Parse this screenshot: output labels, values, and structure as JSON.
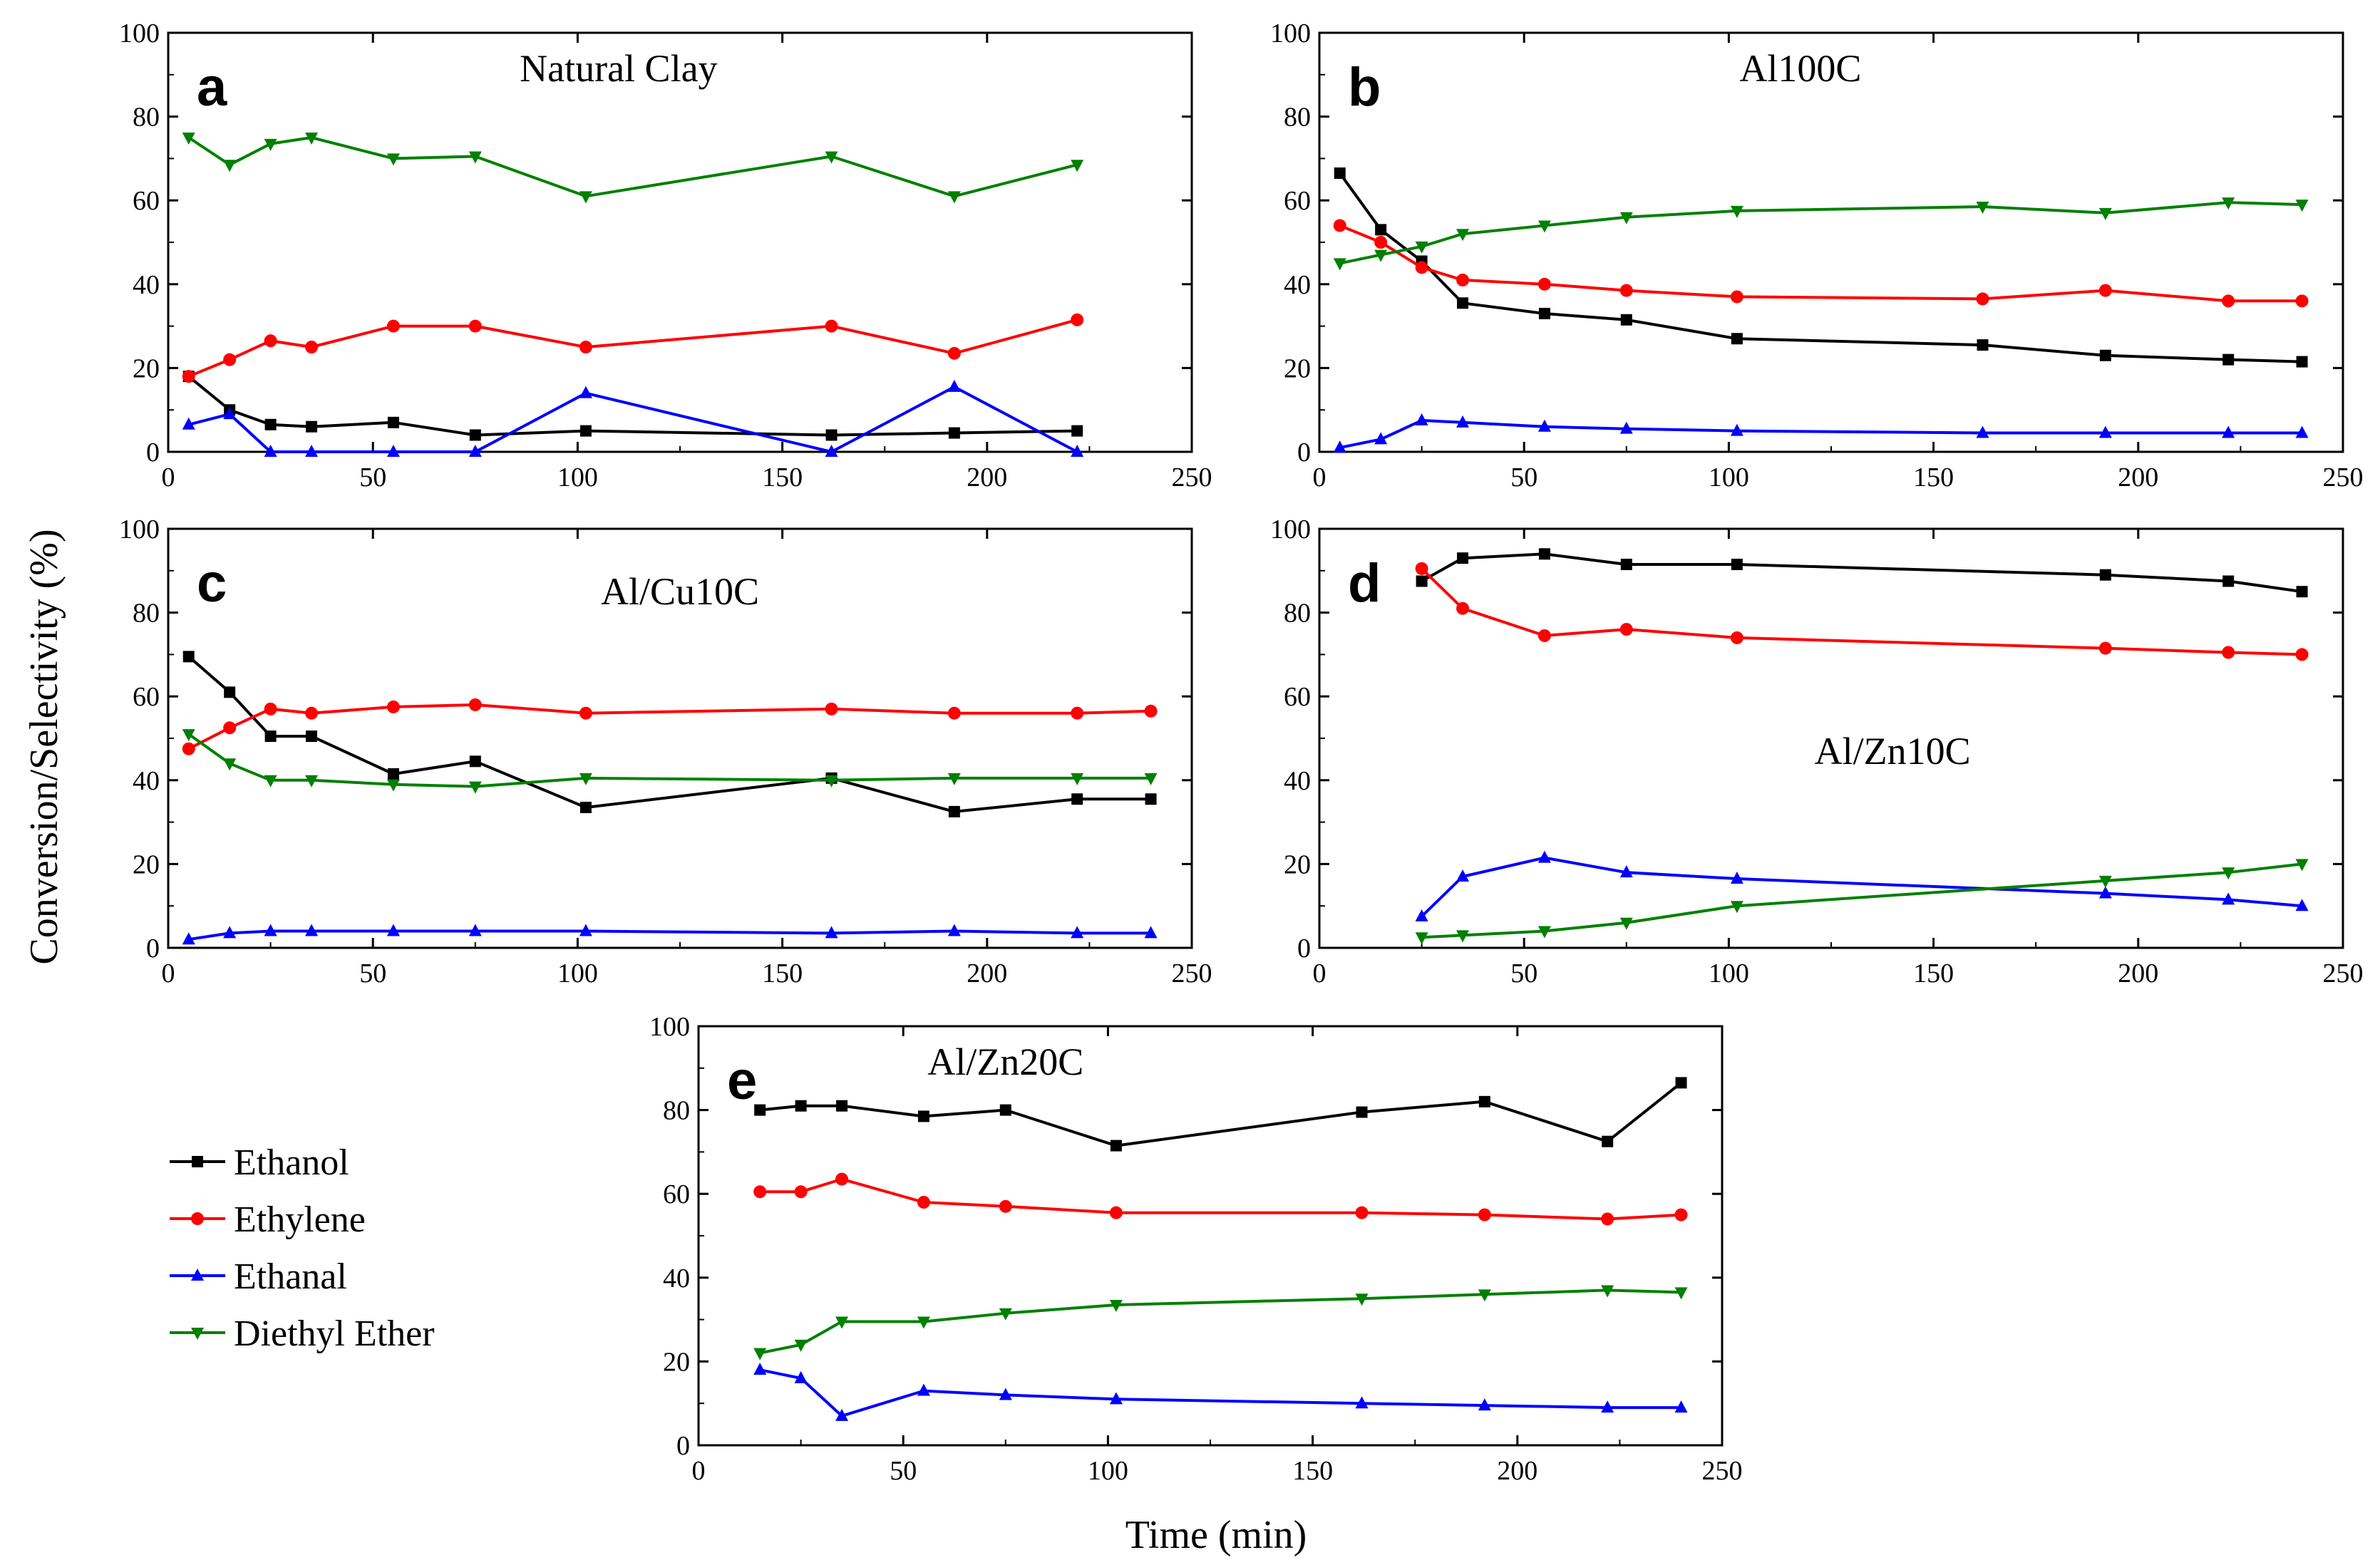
{
  "figure": {
    "ylabel": "Conversion/Selectivity (%)",
    "xlabel": "Time (min)"
  },
  "legend": {
    "entries": [
      {
        "label": "Ethanol",
        "color": "#000000",
        "marker": "square"
      },
      {
        "label": "Ethylene",
        "color": "#ff0000",
        "marker": "circle"
      },
      {
        "label": "Ethanal",
        "color": "#0000ff",
        "marker": "triangle-up"
      },
      {
        "label": "Diethyl Ether",
        "color": "#008000",
        "marker": "triangle-down"
      }
    ]
  },
  "chart_data": [
    {
      "type": "line",
      "letter": "a",
      "title": "Natural Clay",
      "xlim": [
        0,
        250
      ],
      "ylim": [
        0,
        100
      ],
      "xticks": [
        0,
        50,
        100,
        150,
        200,
        250
      ],
      "yticks": [
        0,
        20,
        40,
        60,
        80,
        100
      ],
      "series": [
        {
          "name": "Ethanol",
          "x": [
            5,
            15,
            25,
            35,
            55,
            75,
            102,
            162,
            192,
            222
          ],
          "y": [
            18,
            10,
            6.5,
            6,
            7,
            4,
            5,
            4,
            4.5,
            5
          ]
        },
        {
          "name": "Ethylene",
          "x": [
            5,
            15,
            25,
            35,
            55,
            75,
            102,
            162,
            192,
            222
          ],
          "y": [
            18,
            22,
            26.5,
            25,
            30,
            30,
            25,
            30,
            23.5,
            31.5
          ]
        },
        {
          "name": "Ethanal",
          "x": [
            5,
            15,
            25,
            35,
            55,
            75,
            102,
            162,
            192,
            222
          ],
          "y": [
            6.5,
            9,
            0,
            0,
            0,
            0,
            14,
            0,
            15.5,
            0
          ]
        },
        {
          "name": "Diethyl Ether",
          "x": [
            5,
            15,
            25,
            35,
            55,
            75,
            102,
            162,
            192,
            222
          ],
          "y": [
            75,
            68.5,
            73.5,
            75,
            70,
            70.5,
            61,
            70.5,
            61,
            68.5
          ]
        }
      ]
    },
    {
      "type": "line",
      "letter": "b",
      "title": "Al100C",
      "xlim": [
        0,
        250
      ],
      "ylim": [
        0,
        100
      ],
      "xticks": [
        0,
        50,
        100,
        150,
        200,
        250
      ],
      "yticks": [
        0,
        20,
        40,
        60,
        80,
        100
      ],
      "series": [
        {
          "name": "Ethanol",
          "x": [
            5,
            15,
            25,
            35,
            55,
            75,
            102,
            162,
            192,
            222,
            240
          ],
          "y": [
            66.5,
            53,
            45.5,
            35.5,
            33,
            31.5,
            27,
            25.5,
            23,
            22,
            21.5
          ]
        },
        {
          "name": "Ethylene",
          "x": [
            5,
            15,
            25,
            35,
            55,
            75,
            102,
            162,
            192,
            222,
            240
          ],
          "y": [
            54,
            50,
            44,
            41,
            40,
            38.5,
            37,
            36.5,
            38.5,
            36,
            36
          ]
        },
        {
          "name": "Ethanal",
          "x": [
            5,
            15,
            25,
            35,
            55,
            75,
            102,
            162,
            192,
            222,
            240
          ],
          "y": [
            1,
            3,
            7.5,
            7,
            6,
            5.5,
            5,
            4.5,
            4.5,
            4.5,
            4.5
          ]
        },
        {
          "name": "Diethyl Ether",
          "x": [
            5,
            15,
            25,
            35,
            55,
            75,
            102,
            162,
            192,
            222,
            240
          ],
          "y": [
            45,
            47,
            49,
            52,
            54,
            56,
            57.5,
            58.5,
            57,
            59.5,
            59
          ]
        }
      ]
    },
    {
      "type": "line",
      "letter": "c",
      "title": "Al/Cu10C",
      "xlim": [
        0,
        250
      ],
      "ylim": [
        0,
        100
      ],
      "xticks": [
        0,
        50,
        100,
        150,
        200,
        250
      ],
      "yticks": [
        0,
        20,
        40,
        60,
        80,
        100
      ],
      "series": [
        {
          "name": "Ethanol",
          "x": [
            5,
            15,
            25,
            35,
            55,
            75,
            102,
            162,
            192,
            222,
            240
          ],
          "y": [
            69.5,
            61,
            50.5,
            50.5,
            41.5,
            44.5,
            33.5,
            40.5,
            32.5,
            35.5,
            35.5
          ]
        },
        {
          "name": "Ethylene",
          "x": [
            5,
            15,
            25,
            35,
            55,
            75,
            102,
            162,
            192,
            222,
            240
          ],
          "y": [
            47.5,
            52.5,
            57,
            56,
            57.5,
            58,
            56,
            57,
            56,
            56,
            56.5
          ]
        },
        {
          "name": "Ethanal",
          "x": [
            5,
            15,
            25,
            35,
            55,
            75,
            102,
            162,
            192,
            222,
            240
          ],
          "y": [
            2,
            3.5,
            4,
            4,
            4,
            4,
            4,
            3.5,
            4,
            3.5,
            3.5
          ]
        },
        {
          "name": "Diethyl Ether",
          "x": [
            5,
            15,
            25,
            35,
            55,
            75,
            102,
            162,
            192,
            222,
            240
          ],
          "y": [
            51,
            44,
            40,
            40,
            39,
            38.5,
            40.5,
            40,
            40.5,
            40.5,
            40.5
          ]
        }
      ]
    },
    {
      "type": "line",
      "letter": "d",
      "title": "Al/Zn10C",
      "xlim": [
        0,
        250
      ],
      "ylim": [
        0,
        100
      ],
      "xticks": [
        0,
        50,
        100,
        150,
        200,
        250
      ],
      "yticks": [
        0,
        20,
        40,
        60,
        80,
        100
      ],
      "series": [
        {
          "name": "Ethanol",
          "x": [
            25,
            35,
            55,
            75,
            102,
            192,
            222,
            240
          ],
          "y": [
            87.5,
            93,
            94,
            91.5,
            91.5,
            89,
            87.5,
            85
          ]
        },
        {
          "name": "Ethylene",
          "x": [
            25,
            35,
            55,
            75,
            102,
            192,
            222,
            240
          ],
          "y": [
            90.5,
            81,
            74.5,
            76,
            74,
            71.5,
            70.5,
            70
          ]
        },
        {
          "name": "Ethanal",
          "x": [
            25,
            35,
            55,
            75,
            102,
            192,
            222,
            240
          ],
          "y": [
            7.5,
            17,
            21.5,
            18,
            16.5,
            13,
            11.5,
            10
          ]
        },
        {
          "name": "Diethyl Ether",
          "x": [
            25,
            35,
            55,
            75,
            102,
            192,
            222,
            240
          ],
          "y": [
            2.5,
            3,
            4,
            6,
            10,
            16,
            18,
            20
          ]
        }
      ]
    },
    {
      "type": "line",
      "letter": "e",
      "title": "Al/Zn20C",
      "xlim": [
        0,
        250
      ],
      "ylim": [
        0,
        100
      ],
      "xticks": [
        0,
        50,
        100,
        150,
        200,
        250
      ],
      "yticks": [
        0,
        20,
        40,
        60,
        80,
        100
      ],
      "series": [
        {
          "name": "Ethanol",
          "x": [
            15,
            25,
            35,
            55,
            75,
            102,
            162,
            192,
            222,
            240
          ],
          "y": [
            80,
            81,
            81,
            78.5,
            80,
            71.5,
            79.5,
            82,
            72.5,
            86.5
          ]
        },
        {
          "name": "Ethylene",
          "x": [
            15,
            25,
            35,
            55,
            75,
            102,
            162,
            192,
            222,
            240
          ],
          "y": [
            60.5,
            60.5,
            63.5,
            58,
            57,
            55.5,
            55.5,
            55,
            54,
            55
          ]
        },
        {
          "name": "Ethanal",
          "x": [
            15,
            25,
            35,
            55,
            75,
            102,
            162,
            192,
            222,
            240
          ],
          "y": [
            18,
            16,
            7,
            13,
            12,
            11,
            10,
            9.5,
            9,
            9
          ]
        },
        {
          "name": "Diethyl Ether",
          "x": [
            15,
            25,
            35,
            55,
            75,
            102,
            162,
            192,
            222,
            240
          ],
          "y": [
            22,
            24,
            29.5,
            29.5,
            31.5,
            33.5,
            35,
            36,
            37,
            36.5
          ]
        }
      ]
    }
  ]
}
